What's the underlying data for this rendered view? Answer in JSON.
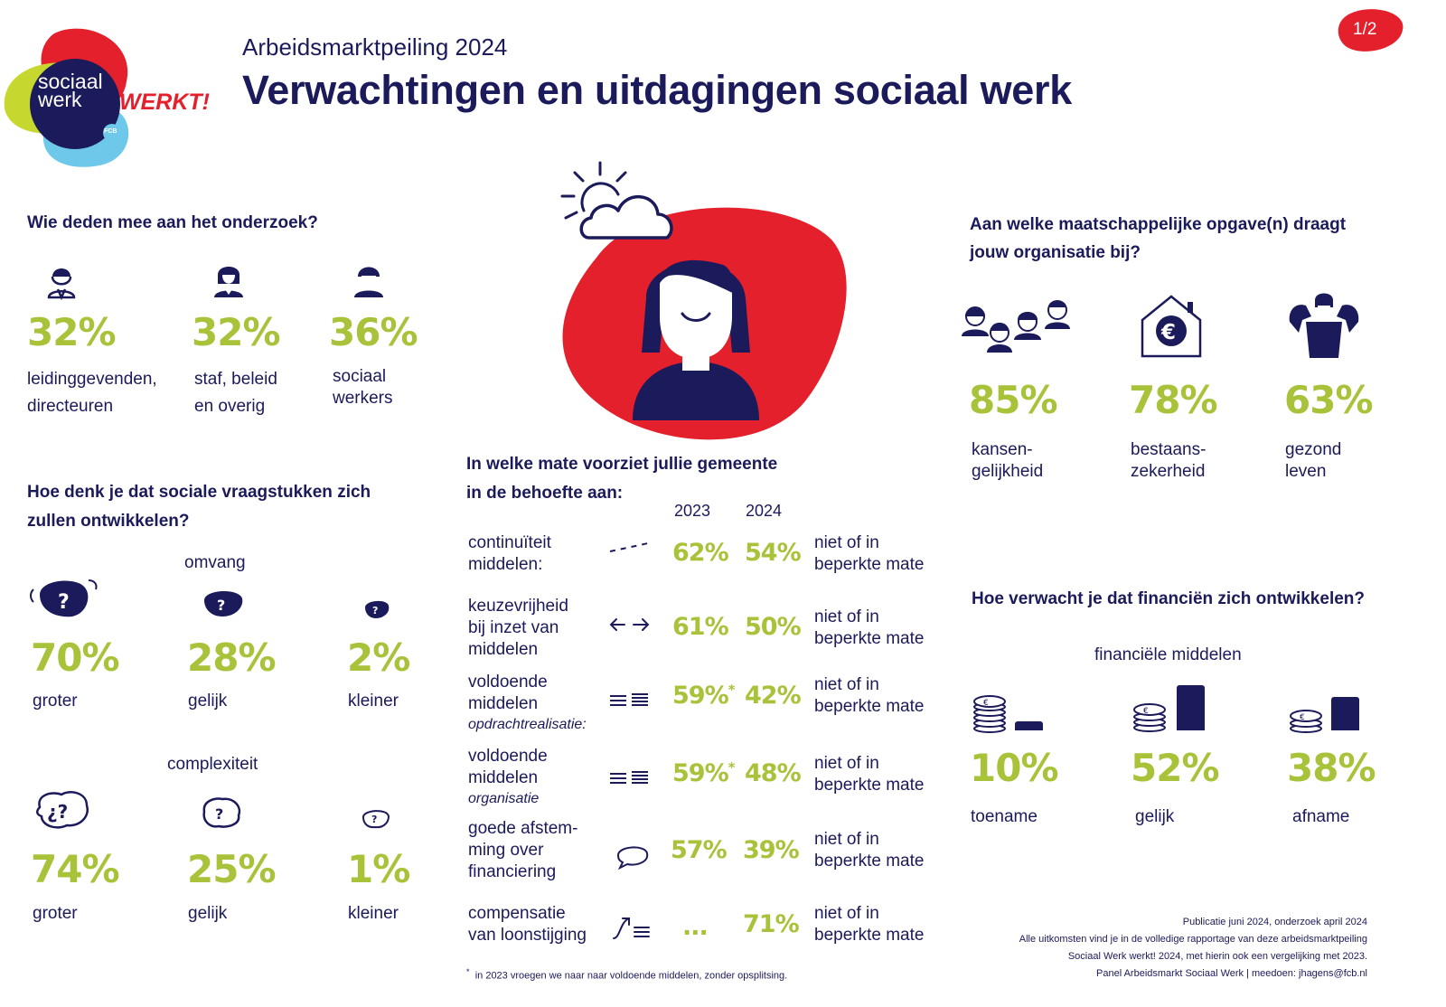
{
  "header": {
    "logo_text_line1": "sociaal",
    "logo_text_line2": "werk",
    "logo_werkt": "WERKT!",
    "logo_badge": "FCB",
    "subtitle": "Arbeidsmarktpeiling 2024",
    "title": "Verwachtingen en uitdagingen sociaal werk",
    "page_number": "1/2"
  },
  "colors": {
    "navy": "#1b1a5a",
    "green": "#a8c23a",
    "red": "#e3202b",
    "lime": "#c6d82f",
    "blue": "#6ec8ea"
  },
  "participants": {
    "heading": "Wie deden mee aan het onderzoek?",
    "items": [
      {
        "icon": "manager-person-icon",
        "pct": "32%",
        "label1": "leidinggevenden,",
        "label2": "directeuren"
      },
      {
        "icon": "staff-person-icon",
        "pct": "32%",
        "label1": "staf, beleid",
        "label2": "en overig"
      },
      {
        "icon": "social-worker-person-icon",
        "pct": "36%",
        "label1": "sociaal",
        "label2": "werkers"
      }
    ]
  },
  "social_issues": {
    "heading1": "Hoe denk je dat sociale vraagstukken zich",
    "heading2": "zullen ontwikkelen?",
    "omvang": {
      "label": "omvang",
      "items": [
        {
          "pct": "70%",
          "label": "groter"
        },
        {
          "pct": "28%",
          "label": "gelijk"
        },
        {
          "pct": "2%",
          "label": "kleiner"
        }
      ]
    },
    "complexiteit": {
      "label": "complexiteit",
      "items": [
        {
          "pct": "74%",
          "label": "groter"
        },
        {
          "pct": "25%",
          "label": "gelijk"
        },
        {
          "pct": "1%",
          "label": "kleiner"
        }
      ]
    }
  },
  "municipality": {
    "heading1": "In welke mate voorziet jullie gemeente",
    "heading2": "in de behoefte aan:",
    "col_2023": "2023",
    "col_2024": "2024",
    "rows": [
      {
        "l1": "continuïteit",
        "l2": "middelen:",
        "l3": "",
        "l3_italic": "",
        "icon": "dashed-line-icon",
        "v2023": "62%",
        "star": "",
        "v2024": "54%",
        "r1": "niet of in",
        "r2": "beperkte mate"
      },
      {
        "l1": "keuzevrijheid",
        "l2": "bij inzet van",
        "l3": "middelen",
        "l3_italic": "",
        "icon": "left-right-arrows-icon",
        "v2023": "61%",
        "star": "",
        "v2024": "50%",
        "r1": "niet of in",
        "r2": "beperkte mate"
      },
      {
        "l1": "voldoende",
        "l2": "middelen",
        "l3": "",
        "l3_italic": "opdrachtrealisatie:",
        "icon": "lines-icon",
        "v2023": "59%",
        "star": "*",
        "v2024": "42%",
        "r1": "niet of in",
        "r2": "beperkte mate"
      },
      {
        "l1": "voldoende",
        "l2": "middelen",
        "l3": "",
        "l3_italic": "organisatie",
        "icon": "lines-icon",
        "v2023": "59%",
        "star": "*",
        "v2024": "48%",
        "r1": "niet of in",
        "r2": "beperkte mate"
      },
      {
        "l1": "goede afstem-",
        "l2": "ming over",
        "l3": "financiering",
        "l3_italic": "",
        "icon": "speech-bubble-icon",
        "v2023": "57%",
        "star": "",
        "v2024": "39%",
        "r1": "niet of in",
        "r2": "beperkte mate"
      },
      {
        "l1": "compensatie",
        "l2": "van loonstijging",
        "l3": "",
        "l3_italic": "",
        "icon": "rising-arrow-icon",
        "v2023": "...",
        "star": "",
        "v2024": "71%",
        "r1": "niet of in",
        "r2": "beperkte mate"
      }
    ],
    "footnote_star": "*",
    "footnote": "in 2023 vroegen we naar naar voldoende middelen, zonder opsplitsing."
  },
  "societal_tasks": {
    "heading1": "Aan welke maatschappelijke opgave(n) draagt",
    "heading2": "jouw organisatie bij?",
    "items": [
      {
        "icon": "people-group-icon",
        "pct": "85%",
        "label1": "kansen-",
        "label2": "gelijkheid"
      },
      {
        "icon": "house-euro-icon",
        "pct": "78%",
        "label1": "bestaans-",
        "label2": "zekerheid"
      },
      {
        "icon": "strong-person-icon",
        "pct": "63%",
        "label1": "gezond",
        "label2": "leven"
      }
    ]
  },
  "finances": {
    "heading": "Hoe verwacht je dat financiën zich ontwikkelen?",
    "sublabel": "financiële middelen",
    "items": [
      {
        "pct": "10%",
        "label": "toename",
        "bar_value": 0.1
      },
      {
        "pct": "52%",
        "label": "gelijk",
        "bar_value": 0.52
      },
      {
        "pct": "38%",
        "label": "afname",
        "bar_value": 0.38
      }
    ]
  },
  "footer": {
    "line1": "Publicatie juni 2024, onderzoek april 2024",
    "line2": "Alle uitkomsten vind je in de volledige rapportage van deze arbeidsmarktpeiling",
    "line3": "Sociaal Werk werkt! 2024, met hierin ook een vergelijking met 2023.",
    "line4": "Panel Arbeidsmarkt Sociaal Werk  |  meedoen: jhagens@fcb.nl"
  }
}
